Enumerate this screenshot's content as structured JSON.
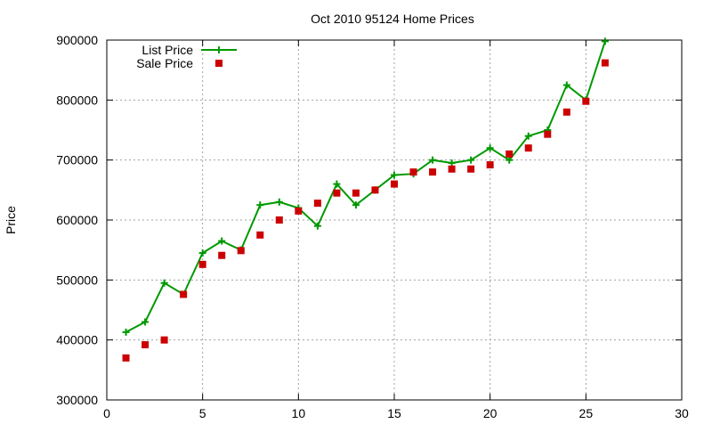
{
  "chart_data": {
    "type": "line",
    "title": "Oct 2010 95124 Home Prices",
    "xlabel": "",
    "ylabel": "Price",
    "xlim": [
      0,
      30
    ],
    "ylim": [
      300000,
      900000
    ],
    "xticks": [
      0,
      5,
      10,
      15,
      20,
      25,
      30
    ],
    "yticks": [
      300000,
      400000,
      500000,
      600000,
      700000,
      800000,
      900000
    ],
    "xtick_labels": [
      "0",
      "5",
      "10",
      "15",
      "20",
      "25",
      "30"
    ],
    "ytick_labels": [
      "300000",
      "400000",
      "500000",
      "600000",
      "700000",
      "800000",
      "900000"
    ],
    "grid": true,
    "legend_position": "top-left",
    "series": [
      {
        "name": "List Price",
        "kind": "line-points",
        "color": "#009900",
        "marker": "plus",
        "x": [
          1,
          2,
          3,
          4,
          5,
          6,
          7,
          8,
          9,
          10,
          11,
          12,
          13,
          14,
          15,
          16,
          17,
          18,
          19,
          20,
          21,
          22,
          23,
          24,
          25,
          26
        ],
        "y": [
          413000,
          430000,
          495000,
          476000,
          545000,
          565000,
          550000,
          625000,
          630000,
          620000,
          590000,
          660000,
          625000,
          650000,
          675000,
          677000,
          700000,
          695000,
          700000,
          720000,
          700000,
          740000,
          750000,
          825000,
          800000,
          898000
        ]
      },
      {
        "name": "Sale Price",
        "kind": "points",
        "color": "#cc0000",
        "marker": "square",
        "x": [
          1,
          2,
          3,
          4,
          5,
          6,
          7,
          8,
          9,
          10,
          11,
          12,
          13,
          14,
          15,
          16,
          17,
          18,
          19,
          20,
          21,
          22,
          23,
          24,
          25,
          26
        ],
        "y": [
          370000,
          392000,
          400000,
          476000,
          526000,
          541000,
          549000,
          575000,
          600000,
          615000,
          628000,
          645000,
          645000,
          650000,
          660000,
          680000,
          680000,
          685000,
          685000,
          692000,
          710000,
          720000,
          743000,
          780000,
          798000,
          862000
        ]
      }
    ]
  }
}
